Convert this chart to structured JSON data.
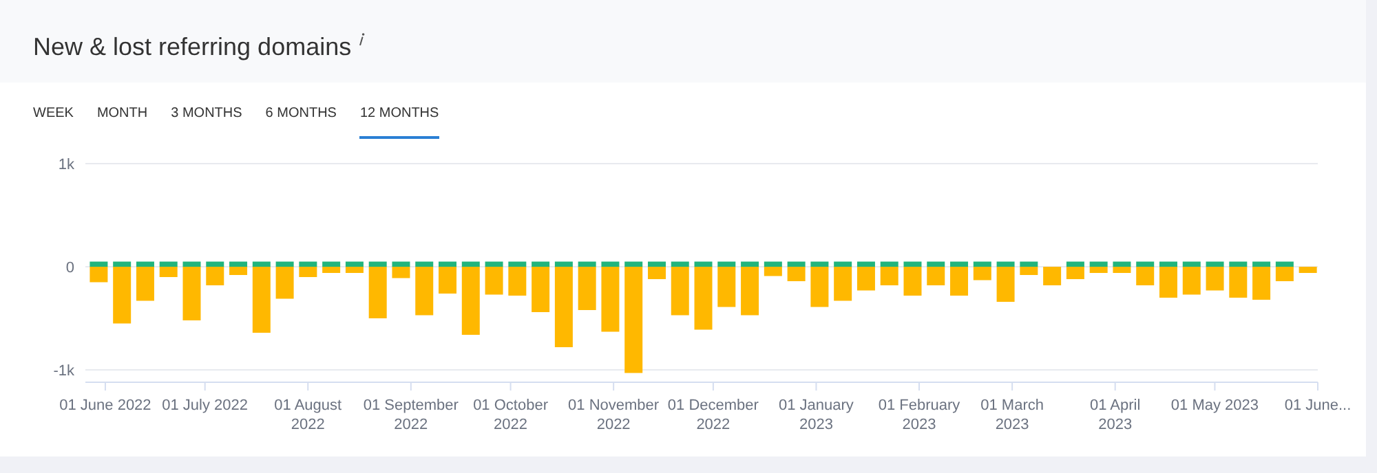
{
  "chart_data": {
    "type": "bar",
    "title": "New & lost referring domains",
    "annotations": [
      "WEEK",
      "MONTH",
      "3 MONTHS",
      "6 MONTHS",
      "12 MONTHS"
    ],
    "x": [
      "2022-05-30",
      "2022-06-06",
      "2022-06-13",
      "2022-06-20",
      "2022-06-27",
      "2022-07-04",
      "2022-07-11",
      "2022-07-18",
      "2022-07-25",
      "2022-08-01",
      "2022-08-08",
      "2022-08-15",
      "2022-08-22",
      "2022-08-29",
      "2022-09-05",
      "2022-09-12",
      "2022-09-19",
      "2022-09-26",
      "2022-10-03",
      "2022-10-10",
      "2022-10-17",
      "2022-10-24",
      "2022-10-31",
      "2022-11-07",
      "2022-11-14",
      "2022-11-21",
      "2022-11-28",
      "2022-12-05",
      "2022-12-12",
      "2022-12-19",
      "2022-12-26",
      "2023-01-02",
      "2023-01-09",
      "2023-01-16",
      "2023-01-23",
      "2023-01-30",
      "2023-02-06",
      "2023-02-13",
      "2023-02-20",
      "2023-02-27",
      "2023-03-06",
      "2023-03-13",
      "2023-03-20",
      "2023-03-27",
      "2023-04-03",
      "2023-04-10",
      "2023-04-17",
      "2023-04-24",
      "2023-05-01",
      "2023-05-08",
      "2023-05-15",
      "2023-05-22",
      "2023-05-29"
    ],
    "stacked": true,
    "series": [
      {
        "color": "#22b47c",
        "values": [
          50,
          50,
          50,
          50,
          50,
          50,
          50,
          50,
          50,
          50,
          50,
          50,
          50,
          50,
          50,
          50,
          50,
          50,
          50,
          50,
          50,
          50,
          50,
          50,
          50,
          50,
          50,
          50,
          50,
          50,
          50,
          50,
          50,
          50,
          50,
          50,
          50,
          50,
          50,
          50,
          50,
          null,
          50,
          50,
          50,
          50,
          50,
          50,
          50,
          50,
          50,
          50,
          null
        ]
      },
      {
        "color": "#ffb800",
        "values": [
          -150,
          -550,
          -330,
          -100,
          -520,
          -180,
          -80,
          -640,
          -310,
          -100,
          -60,
          -60,
          -500,
          -110,
          -470,
          -260,
          -660,
          -270,
          -280,
          -440,
          -780,
          -420,
          -630,
          -1030,
          -120,
          -470,
          -610,
          -390,
          -470,
          -90,
          -140,
          -390,
          -330,
          -230,
          -180,
          -280,
          -180,
          -280,
          -130,
          -340,
          -80,
          -180,
          -120,
          -60,
          -60,
          -180,
          -300,
          -270,
          -230,
          -300,
          -320,
          -140,
          -60
        ]
      }
    ],
    "xlim": [
      "2022-05-26",
      "2023-06-01"
    ],
    "xticks": [
      {
        "value": "2022-06-01",
        "label": "01 June 2022"
      },
      {
        "value": "2022-07-01",
        "label": "01 July 2022"
      },
      {
        "value": "2022-08-01",
        "label": "01 August 2022"
      },
      {
        "value": "2022-09-01",
        "label": "01 September 2022"
      },
      {
        "value": "2022-10-01",
        "label": "01 October 2022"
      },
      {
        "value": "2022-11-01",
        "label": "01 November 2022"
      },
      {
        "value": "2022-12-01",
        "label": "01 December 2022"
      },
      {
        "value": "2023-01-01",
        "label": "01 January 2023"
      },
      {
        "value": "2023-02-01",
        "label": "01 February 2023"
      },
      {
        "value": "2023-03-01",
        "label": "01 March 2023"
      },
      {
        "value": "2023-04-01",
        "label": "01 April 2023"
      },
      {
        "value": "2023-05-01",
        "label": "01 May 2023"
      },
      {
        "value": "2023-06-01",
        "label": "01 June..."
      }
    ],
    "ylim": [
      -1120,
      1000
    ],
    "yticks": [
      {
        "value": 1000,
        "label": "1k"
      },
      0,
      {
        "value": -1000,
        "label": "-1k"
      }
    ],
    "grid": "y"
  }
}
